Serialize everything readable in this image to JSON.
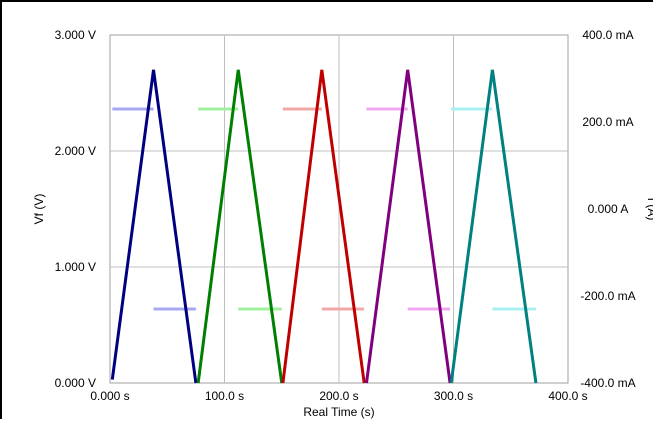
{
  "chart_data": {
    "type": "line",
    "xlabel": "Real Time (s)",
    "ylabel": "Vf (V)",
    "y2label": "I (A)",
    "x_range": [
      0,
      400
    ],
    "y_range": [
      0,
      3
    ],
    "y2_range": [
      -0.4,
      0.4
    ],
    "x_ticks": [
      {
        "value": 0,
        "label": "0.000 s"
      },
      {
        "value": 100,
        "label": "100.0 s"
      },
      {
        "value": 200,
        "label": "200.0 s"
      },
      {
        "value": 300,
        "label": "300.0 s"
      },
      {
        "value": 400,
        "label": "400.0 s"
      }
    ],
    "y_ticks": [
      {
        "value": 0,
        "label": "0.000 V"
      },
      {
        "value": 1,
        "label": "1.000 V"
      },
      {
        "value": 2,
        "label": "2.000 V"
      },
      {
        "value": 3,
        "label": "3.000 V"
      }
    ],
    "y2_ticks": [
      {
        "value": 0.4,
        "label": "400.0 mA"
      },
      {
        "value": 0.2,
        "label": "200.0 mA"
      },
      {
        "value": 0.0,
        "label": "0.000 A"
      },
      {
        "value": -0.2,
        "label": "-200.0 mA"
      },
      {
        "value": -0.4,
        "label": "-400.0 mA"
      }
    ],
    "grid": true,
    "series": [
      {
        "color": "#000080",
        "x": [
          2,
          38,
          75
        ],
        "y": [
          0.03,
          2.7,
          0.0
        ]
      },
      {
        "color": "#008000",
        "x": [
          77,
          112,
          150
        ],
        "y": [
          0.0,
          2.7,
          0.0
        ]
      },
      {
        "color": "#c00000",
        "x": [
          151,
          185,
          222
        ],
        "y": [
          0.0,
          2.7,
          0.0
        ]
      },
      {
        "color": "#800080",
        "x": [
          224,
          260,
          297
        ],
        "y": [
          0.0,
          2.7,
          0.0
        ]
      },
      {
        "color": "#008080",
        "x": [
          298,
          334,
          372
        ],
        "y": [
          0.0,
          2.7,
          0.0
        ]
      }
    ],
    "current_series": [
      {
        "color": "#a8a8f0",
        "x": [
          2,
          38
        ],
        "y2": 0.23
      },
      {
        "color": "#a8a8f0",
        "x": [
          38,
          75
        ],
        "y2": -0.23
      },
      {
        "color": "#a0f0a0",
        "x": [
          77,
          112
        ],
        "y2": 0.23
      },
      {
        "color": "#a0f0a0",
        "x": [
          112,
          150
        ],
        "y2": -0.23
      },
      {
        "color": "#f0a8a8",
        "x": [
          151,
          185
        ],
        "y2": 0.23
      },
      {
        "color": "#f0a8a8",
        "x": [
          185,
          222
        ],
        "y2": -0.23
      },
      {
        "color": "#f0a8f0",
        "x": [
          224,
          260
        ],
        "y2": 0.23
      },
      {
        "color": "#f0a8f0",
        "x": [
          260,
          297
        ],
        "y2": -0.23
      },
      {
        "color": "#a8f0f0",
        "x": [
          298,
          334
        ],
        "y2": 0.23
      },
      {
        "color": "#a8f0f0",
        "x": [
          334,
          372
        ],
        "y2": -0.23
      }
    ]
  }
}
